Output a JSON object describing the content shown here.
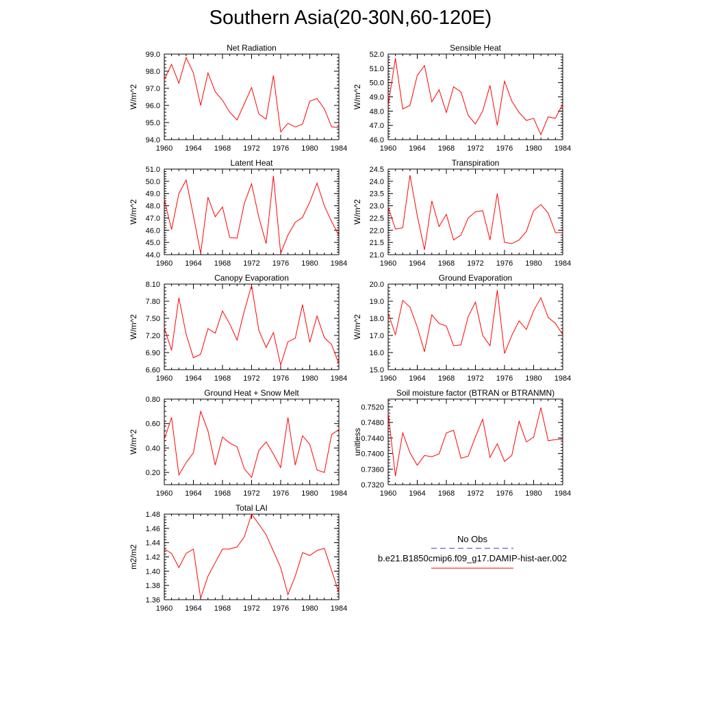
{
  "title": "Southern Asia(20-30N,60-120E)",
  "legend": {
    "entries": [
      {
        "label": "No Obs",
        "color": "#3a3ab0",
        "dash": true
      },
      {
        "label": "b.e21.B1850cmip6.f09_g17.DAMIP-hist-aer.002",
        "color": "#ff0000",
        "dash": false
      }
    ]
  },
  "chart_data": [
    {
      "type": "line",
      "title": "Net Radiation",
      "ylabel": "W/m^2",
      "xlim": [
        1960,
        1984
      ],
      "ylim": [
        94.0,
        99.0
      ],
      "yticks": [
        "94.0",
        "95.0",
        "96.0",
        "97.0",
        "98.0",
        "99.0"
      ],
      "xticks": [
        "1960",
        "1964",
        "1968",
        "1972",
        "1976",
        "1980",
        "1984"
      ],
      "x": [
        1960,
        1961,
        1962,
        1963,
        1964,
        1965,
        1966,
        1967,
        1968,
        1969,
        1970,
        1971,
        1972,
        1973,
        1974,
        1975,
        1976,
        1977,
        1978,
        1979,
        1980,
        1981,
        1982,
        1983,
        1984
      ],
      "series": [
        {
          "color": "#ff0000",
          "values": [
            97.5,
            98.4,
            97.3,
            98.8,
            97.9,
            96.0,
            97.9,
            96.8,
            96.3,
            95.6,
            95.15,
            96.1,
            97.05,
            95.5,
            95.2,
            97.75,
            94.45,
            94.95,
            94.75,
            94.9,
            96.25,
            96.4,
            95.8,
            94.75,
            94.7
          ]
        }
      ]
    },
    {
      "type": "line",
      "title": "Sensible Heat",
      "ylabel": "W/m^2",
      "xlim": [
        1960,
        1984
      ],
      "ylim": [
        46.0,
        52.0
      ],
      "yticks": [
        "46.0",
        "47.0",
        "48.0",
        "49.0",
        "50.0",
        "51.0",
        "52.0"
      ],
      "xticks": [
        "1960",
        "1964",
        "1968",
        "1972",
        "1976",
        "1980",
        "1984"
      ],
      "x": [
        1960,
        1961,
        1962,
        1963,
        1964,
        1965,
        1966,
        1967,
        1968,
        1969,
        1970,
        1971,
        1972,
        1973,
        1974,
        1975,
        1976,
        1977,
        1978,
        1979,
        1980,
        1981,
        1982,
        1983,
        1984
      ],
      "series": [
        {
          "color": "#ff0000",
          "values": [
            48.4,
            51.7,
            48.15,
            48.4,
            50.5,
            51.2,
            48.65,
            49.5,
            47.9,
            49.7,
            49.35,
            47.7,
            47.1,
            48.0,
            49.8,
            47.0,
            50.1,
            48.7,
            47.9,
            47.35,
            47.5,
            46.35,
            47.6,
            47.5,
            48.5
          ]
        }
      ]
    },
    {
      "type": "line",
      "title": "Latent Heat",
      "ylabel": "W/m^2",
      "xlim": [
        1960,
        1984
      ],
      "ylim": [
        44.0,
        51.0
      ],
      "yticks": [
        "44.0",
        "45.0",
        "46.0",
        "47.0",
        "48.0",
        "49.0",
        "50.0",
        "51.0"
      ],
      "xticks": [
        "1960",
        "1964",
        "1968",
        "1972",
        "1976",
        "1980",
        "1984"
      ],
      "x": [
        1960,
        1961,
        1962,
        1963,
        1964,
        1965,
        1966,
        1967,
        1968,
        1969,
        1970,
        1971,
        1972,
        1973,
        1974,
        1975,
        1976,
        1977,
        1978,
        1979,
        1980,
        1981,
        1982,
        1983,
        1984
      ],
      "series": [
        {
          "color": "#ff0000",
          "values": [
            48.5,
            46.05,
            49.0,
            50.1,
            47.2,
            44.1,
            48.7,
            47.1,
            47.9,
            45.4,
            45.35,
            48.2,
            49.8,
            47.05,
            44.9,
            50.45,
            44.1,
            45.6,
            46.65,
            47.05,
            48.3,
            49.85,
            48.0,
            46.7,
            45.6
          ]
        }
      ]
    },
    {
      "type": "line",
      "title": "Transpiration",
      "ylabel": "W/m^2",
      "xlim": [
        1960,
        1984
      ],
      "ylim": [
        21.0,
        24.5
      ],
      "yticks": [
        "21.0",
        "21.5",
        "22.0",
        "22.5",
        "23.0",
        "23.5",
        "24.0",
        "24.5"
      ],
      "xticks": [
        "1960",
        "1964",
        "1968",
        "1972",
        "1976",
        "1980",
        "1984"
      ],
      "x": [
        1960,
        1961,
        1962,
        1963,
        1964,
        1965,
        1966,
        1967,
        1968,
        1969,
        1970,
        1971,
        1972,
        1973,
        1974,
        1975,
        1976,
        1977,
        1978,
        1979,
        1980,
        1981,
        1982,
        1983,
        1984
      ],
      "series": [
        {
          "color": "#ff0000",
          "values": [
            22.95,
            22.05,
            22.1,
            24.25,
            22.6,
            21.2,
            23.2,
            22.15,
            22.65,
            21.6,
            21.8,
            22.5,
            22.75,
            22.8,
            21.6,
            23.5,
            21.5,
            21.45,
            21.6,
            21.95,
            22.8,
            23.05,
            22.7,
            21.9,
            21.9
          ]
        }
      ]
    },
    {
      "type": "line",
      "title": "Canopy Evaporation",
      "ylabel": "W/m^2",
      "xlim": [
        1960,
        1984
      ],
      "ylim": [
        6.6,
        8.1
      ],
      "yticks": [
        "6.60",
        "6.90",
        "7.20",
        "7.50",
        "7.80",
        "8.10"
      ],
      "xticks": [
        "1960",
        "1964",
        "1968",
        "1972",
        "1976",
        "1980",
        "1984"
      ],
      "x": [
        1960,
        1961,
        1962,
        1963,
        1964,
        1965,
        1966,
        1967,
        1968,
        1969,
        1970,
        1971,
        1972,
        1973,
        1974,
        1975,
        1976,
        1977,
        1978,
        1979,
        1980,
        1981,
        1982,
        1983,
        1984
      ],
      "series": [
        {
          "color": "#ff0000",
          "values": [
            7.33,
            6.94,
            7.86,
            7.22,
            6.81,
            6.87,
            7.32,
            7.24,
            7.63,
            7.4,
            7.12,
            7.63,
            8.08,
            7.29,
            6.99,
            7.25,
            6.68,
            7.09,
            7.15,
            7.74,
            7.08,
            7.54,
            7.16,
            7.04,
            6.7
          ]
        }
      ]
    },
    {
      "type": "line",
      "title": "Ground Evaporation",
      "ylabel": "W/m^2",
      "xlim": [
        1960,
        1984
      ],
      "ylim": [
        15.0,
        20.0
      ],
      "yticks": [
        "15.0",
        "16.0",
        "17.0",
        "18.0",
        "19.0",
        "20.0"
      ],
      "xticks": [
        "1960",
        "1964",
        "1968",
        "1972",
        "1976",
        "1980",
        "1984"
      ],
      "x": [
        1960,
        1961,
        1962,
        1963,
        1964,
        1965,
        1966,
        1967,
        1968,
        1969,
        1970,
        1971,
        1972,
        1973,
        1974,
        1975,
        1976,
        1977,
        1978,
        1979,
        1980,
        1981,
        1982,
        1983,
        1984
      ],
      "series": [
        {
          "color": "#ff0000",
          "values": [
            18.3,
            17.05,
            19.05,
            18.65,
            17.5,
            16.05,
            18.2,
            17.7,
            17.55,
            16.4,
            16.45,
            18.1,
            18.95,
            17.0,
            16.4,
            19.65,
            15.95,
            17.0,
            17.85,
            17.35,
            18.45,
            19.2,
            18.05,
            17.7,
            17.05
          ]
        }
      ]
    },
    {
      "type": "line",
      "title": "Ground Heat + Snow Melt",
      "ylabel": "W/m^2",
      "xlim": [
        1960,
        1984
      ],
      "ylim": [
        0.1,
        0.8
      ],
      "yticks": [
        "0.20",
        "0.40",
        "0.60",
        "0.80"
      ],
      "ytick_values": [
        0.2,
        0.4,
        0.6,
        0.8
      ],
      "xticks": [
        "1960",
        "1964",
        "1968",
        "1972",
        "1976",
        "1980",
        "1984"
      ],
      "x": [
        1960,
        1961,
        1962,
        1963,
        1964,
        1965,
        1966,
        1967,
        1968,
        1969,
        1970,
        1971,
        1972,
        1973,
        1974,
        1975,
        1976,
        1977,
        1978,
        1979,
        1980,
        1981,
        1982,
        1983,
        1984
      ],
      "series": [
        {
          "color": "#ff0000",
          "values": [
            0.47,
            0.65,
            0.18,
            0.28,
            0.36,
            0.7,
            0.54,
            0.26,
            0.49,
            0.44,
            0.41,
            0.23,
            0.16,
            0.38,
            0.45,
            0.35,
            0.24,
            0.65,
            0.26,
            0.5,
            0.43,
            0.22,
            0.2,
            0.51,
            0.55
          ]
        }
      ]
    },
    {
      "type": "line",
      "title": "Soil moisture factor (BTRAN or BTRANMN)",
      "ylabel": "unitless",
      "xlim": [
        1960,
        1984
      ],
      "ylim": [
        0.732,
        0.754
      ],
      "yticks": [
        "0.7320",
        "0.7360",
        "0.7400",
        "0.7440",
        "0.7480",
        "0.7520"
      ],
      "ytick_values": [
        0.732,
        0.736,
        0.74,
        0.744,
        0.748,
        0.752
      ],
      "xticks": [
        "1960",
        "1964",
        "1968",
        "1972",
        "1976",
        "1980",
        "1984"
      ],
      "x": [
        1960,
        1961,
        1962,
        1963,
        1964,
        1965,
        1966,
        1967,
        1968,
        1969,
        1970,
        1971,
        1972,
        1973,
        1974,
        1975,
        1976,
        1977,
        1978,
        1979,
        1980,
        1981,
        1982,
        1983,
        1984
      ],
      "series": [
        {
          "color": "#ff0000",
          "values": [
            0.7505,
            0.7342,
            0.7453,
            0.7402,
            0.737,
            0.7395,
            0.7392,
            0.7399,
            0.7453,
            0.746,
            0.7388,
            0.7393,
            0.7443,
            0.7488,
            0.739,
            0.7425,
            0.738,
            0.7395,
            0.7483,
            0.743,
            0.7442,
            0.7518,
            0.7433,
            0.7436,
            0.7437
          ]
        }
      ]
    },
    {
      "type": "line",
      "title": "Total LAI",
      "ylabel": "m2/m2",
      "xlim": [
        1960,
        1984
      ],
      "ylim": [
        1.36,
        1.48
      ],
      "yticks": [
        "1.36",
        "1.38",
        "1.40",
        "1.42",
        "1.44",
        "1.46",
        "1.48"
      ],
      "xticks": [
        "1960",
        "1964",
        "1968",
        "1972",
        "1976",
        "1980",
        "1984"
      ],
      "x": [
        1960,
        1961,
        1962,
        1963,
        1964,
        1965,
        1966,
        1967,
        1968,
        1969,
        1970,
        1971,
        1972,
        1973,
        1974,
        1975,
        1976,
        1977,
        1978,
        1979,
        1980,
        1981,
        1982,
        1983,
        1984
      ],
      "series": [
        {
          "color": "#ff0000",
          "values": [
            1.431,
            1.425,
            1.405,
            1.425,
            1.431,
            1.362,
            1.393,
            1.412,
            1.431,
            1.431,
            1.434,
            1.448,
            1.48,
            1.466,
            1.451,
            1.428,
            1.405,
            1.367,
            1.393,
            1.426,
            1.422,
            1.429,
            1.432,
            1.401,
            1.37
          ]
        }
      ]
    }
  ]
}
